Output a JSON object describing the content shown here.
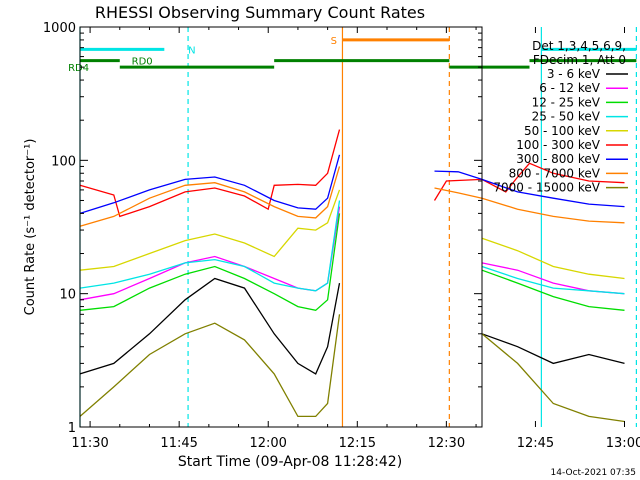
{
  "chart_data": {
    "type": "line",
    "title": "RHESSI Observing Summary Count Rates",
    "xlabel": "Start Time (09-Apr-08 11:28:42)",
    "ylabel": "Count Rate (s⁻¹ detector⁻¹)",
    "footer": "14-Oct-2021 07:35",
    "x_range_min": [
      -1.7,
      66
    ],
    "y_log": true,
    "ylim": [
      1,
      1000
    ],
    "x_ticks": [
      {
        "min": 0,
        "label": "11:30"
      },
      {
        "min": 15,
        "label": "11:45"
      },
      {
        "min": 30,
        "label": "12:00"
      },
      {
        "min": 45,
        "label": "12:15"
      },
      {
        "min": 60,
        "label": "12:30"
      },
      {
        "min": 75,
        "label": "12:45"
      },
      {
        "min": 90,
        "label": "13:00"
      }
    ],
    "y_ticks": [
      {
        "value": 1,
        "label": "1"
      },
      {
        "value": 10,
        "label": "10"
      },
      {
        "value": 100,
        "label": "100"
      },
      {
        "value": 1000,
        "label": "1000"
      }
    ],
    "legend": {
      "header": [
        "Det 1,3,4,5,6,9,",
        "FDecim 1, Att 0"
      ],
      "position": "right"
    },
    "series": [
      {
        "name": "3 - 6 keV",
        "color": "#000000",
        "pts": [
          [
            -1.7,
            2.5
          ],
          [
            4,
            3
          ],
          [
            10,
            5
          ],
          [
            16,
            9
          ],
          [
            21,
            13
          ],
          [
            26,
            11
          ],
          [
            31,
            5
          ],
          [
            35,
            3
          ],
          [
            38,
            2.5
          ],
          [
            40,
            4
          ],
          [
            42,
            12
          ],
          [
            57,
            null
          ],
          [
            66,
            5
          ],
          [
            72,
            4
          ],
          [
            78,
            3
          ],
          [
            84,
            3.5
          ],
          [
            90,
            3
          ]
        ]
      },
      {
        "name": "6 - 12 keV",
        "color": "#ff00ff",
        "pts": [
          [
            -1.7,
            9
          ],
          [
            4,
            10
          ],
          [
            10,
            13
          ],
          [
            16,
            17
          ],
          [
            21,
            19
          ],
          [
            26,
            16
          ],
          [
            31,
            13
          ],
          [
            35,
            11
          ],
          [
            38,
            10.5
          ],
          [
            40,
            12
          ],
          [
            42,
            45
          ],
          [
            57,
            null
          ],
          [
            66,
            17
          ],
          [
            72,
            15
          ],
          [
            78,
            12
          ],
          [
            84,
            10.5
          ],
          [
            90,
            10
          ]
        ]
      },
      {
        "name": "12 - 25 keV",
        "color": "#00dd00",
        "pts": [
          [
            -1.7,
            7.5
          ],
          [
            4,
            8
          ],
          [
            10,
            11
          ],
          [
            16,
            14
          ],
          [
            21,
            16
          ],
          [
            26,
            13
          ],
          [
            31,
            10
          ],
          [
            35,
            8
          ],
          [
            38,
            7.5
          ],
          [
            40,
            9
          ],
          [
            42,
            40
          ],
          [
            57,
            null
          ],
          [
            66,
            15
          ],
          [
            72,
            12
          ],
          [
            78,
            9.5
          ],
          [
            84,
            8
          ],
          [
            90,
            7.5
          ]
        ]
      },
      {
        "name": "25 - 50 keV",
        "color": "#00e5e5",
        "pts": [
          [
            -1.7,
            11
          ],
          [
            4,
            12
          ],
          [
            10,
            14
          ],
          [
            16,
            17
          ],
          [
            21,
            18
          ],
          [
            26,
            16
          ],
          [
            31,
            12
          ],
          [
            35,
            11
          ],
          [
            38,
            10.5
          ],
          [
            40,
            12
          ],
          [
            42,
            50
          ],
          [
            57,
            null
          ],
          [
            66,
            16
          ],
          [
            72,
            13
          ],
          [
            78,
            11
          ],
          [
            84,
            10.5
          ],
          [
            90,
            10
          ]
        ]
      },
      {
        "name": "50 - 100 keV",
        "color": "#d7d700",
        "pts": [
          [
            -1.7,
            15
          ],
          [
            4,
            16
          ],
          [
            10,
            20
          ],
          [
            16,
            25
          ],
          [
            21,
            28
          ],
          [
            26,
            24
          ],
          [
            31,
            19
          ],
          [
            35,
            31
          ],
          [
            38,
            30
          ],
          [
            40,
            34
          ],
          [
            42,
            60
          ],
          [
            57,
            null
          ],
          [
            66,
            26
          ],
          [
            72,
            21
          ],
          [
            78,
            16
          ],
          [
            84,
            14
          ],
          [
            90,
            13
          ]
        ]
      },
      {
        "name": "100 - 300 keV",
        "color": "#ff0000",
        "pts": [
          [
            -1.7,
            65
          ],
          [
            4,
            55
          ],
          [
            5,
            38
          ],
          [
            10,
            45
          ],
          [
            16,
            58
          ],
          [
            21,
            62
          ],
          [
            26,
            54
          ],
          [
            30,
            43
          ],
          [
            31,
            65
          ],
          [
            35,
            66
          ],
          [
            38,
            65
          ],
          [
            40,
            80
          ],
          [
            42,
            170
          ],
          [
            57,
            null
          ],
          [
            58,
            50
          ],
          [
            60,
            70
          ],
          [
            66,
            72
          ],
          [
            70,
            58
          ],
          [
            72,
            75
          ],
          [
            74,
            95
          ],
          [
            78,
            80
          ],
          [
            84,
            70
          ],
          [
            90,
            68
          ]
        ]
      },
      {
        "name": "300 - 800 keV",
        "color": "#0000ff",
        "pts": [
          [
            -1.7,
            40
          ],
          [
            4,
            48
          ],
          [
            10,
            60
          ],
          [
            16,
            72
          ],
          [
            21,
            75
          ],
          [
            26,
            65
          ],
          [
            31,
            50
          ],
          [
            35,
            44
          ],
          [
            38,
            43
          ],
          [
            40,
            52
          ],
          [
            42,
            110
          ],
          [
            57,
            null
          ],
          [
            58,
            83
          ],
          [
            62,
            82
          ],
          [
            66,
            72
          ],
          [
            72,
            58
          ],
          [
            78,
            52
          ],
          [
            84,
            47
          ],
          [
            90,
            45
          ]
        ]
      },
      {
        "name": "800 - 7000 keV",
        "color": "#ff8000",
        "pts": [
          [
            -1.7,
            32
          ],
          [
            4,
            38
          ],
          [
            10,
            52
          ],
          [
            16,
            65
          ],
          [
            21,
            68
          ],
          [
            26,
            58
          ],
          [
            31,
            45
          ],
          [
            35,
            38
          ],
          [
            38,
            37
          ],
          [
            40,
            45
          ],
          [
            42,
            90
          ],
          [
            57,
            null
          ],
          [
            58,
            62
          ],
          [
            62,
            57
          ],
          [
            66,
            52
          ],
          [
            72,
            43
          ],
          [
            78,
            38
          ],
          [
            84,
            35
          ],
          [
            90,
            34
          ]
        ]
      },
      {
        "name": "7000 - 15000 keV",
        "color": "#808000",
        "pts": [
          [
            -1.7,
            1.2
          ],
          [
            4,
            2
          ],
          [
            10,
            3.5
          ],
          [
            16,
            5
          ],
          [
            21,
            6
          ],
          [
            26,
            4.5
          ],
          [
            31,
            2.5
          ],
          [
            35,
            1.2
          ],
          [
            38,
            1.2
          ],
          [
            40,
            1.5
          ],
          [
            42,
            7
          ],
          [
            57,
            null
          ],
          [
            66,
            5
          ],
          [
            72,
            3
          ],
          [
            78,
            1.5
          ],
          [
            84,
            1.2
          ],
          [
            90,
            1.1
          ]
        ]
      }
    ],
    "mode_bars": [
      {
        "label": "N",
        "color": "#00e5e5",
        "y": 680,
        "x1": -1.7,
        "x2": 12.5,
        "label_x": 16.5
      },
      {
        "label": "",
        "color": "#00e5e5",
        "y": 680,
        "x1": 76,
        "x2": 92
      },
      {
        "label": "S",
        "color": "#ff8000",
        "y": 800,
        "x1": 42.5,
        "x2": 60.5,
        "label_x": 40.5
      },
      {
        "label": "RD0",
        "color": "#008000",
        "y": 560,
        "x1": -1.7,
        "x2": 5,
        "label_x": 7
      },
      {
        "label": "RD4",
        "color": "#008000",
        "y": 500,
        "x1": 5,
        "x2": 31,
        "label_x": -3.7
      },
      {
        "label": "",
        "color": "#008000",
        "y": 560,
        "x1": 31,
        "x2": 60.5
      },
      {
        "label": "",
        "color": "#008000",
        "y": 500,
        "x1": 60.5,
        "x2": 74
      },
      {
        "label": "",
        "color": "#008000",
        "y": 560,
        "x1": 74,
        "x2": 92
      }
    ],
    "vlines": [
      {
        "x": -1.7,
        "color": "#00e5e5",
        "dash": false
      },
      {
        "x": 16.5,
        "color": "#00e5e5",
        "dash": true
      },
      {
        "x": 42.5,
        "color": "#ff8000",
        "dash": false
      },
      {
        "x": 60.5,
        "color": "#ff8000",
        "dash": true
      },
      {
        "x": 76,
        "color": "#00e5e5",
        "dash": false
      },
      {
        "x": 92,
        "color": "#00e5e5",
        "dash": true
      }
    ]
  }
}
